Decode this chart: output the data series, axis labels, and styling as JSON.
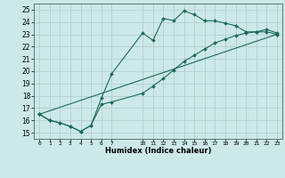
{
  "xlabel": "Humidex (Indice chaleur)",
  "bg_color": "#cde8e8",
  "grid_color": "#b0d0d0",
  "line_color": "#1a6b5a",
  "xlim": [
    -0.5,
    23.5
  ],
  "ylim": [
    14.5,
    25.5
  ],
  "xticks": [
    0,
    1,
    2,
    3,
    4,
    5,
    6,
    7,
    10,
    11,
    12,
    13,
    14,
    15,
    16,
    17,
    18,
    19,
    20,
    21,
    22,
    23
  ],
  "yticks": [
    15,
    16,
    17,
    18,
    19,
    20,
    21,
    22,
    23,
    24,
    25
  ],
  "series1_x": [
    0,
    1,
    2,
    3,
    4,
    5,
    6,
    7,
    10,
    11,
    12,
    13,
    14,
    15,
    16,
    17,
    18,
    19,
    20,
    21,
    22,
    23
  ],
  "series1_y": [
    16.5,
    16.0,
    15.8,
    15.5,
    15.1,
    15.6,
    17.8,
    19.8,
    23.1,
    22.5,
    24.3,
    24.1,
    24.9,
    24.6,
    24.1,
    24.1,
    23.9,
    23.7,
    23.2,
    23.2,
    23.4,
    23.1
  ],
  "series2_x": [
    0,
    1,
    2,
    3,
    4,
    5,
    6,
    7,
    10,
    11,
    12,
    13,
    14,
    15,
    16,
    17,
    18,
    19,
    20,
    21,
    22,
    23
  ],
  "series2_y": [
    16.5,
    16.0,
    15.8,
    15.5,
    15.1,
    15.6,
    17.3,
    17.5,
    18.2,
    18.8,
    19.4,
    20.1,
    20.8,
    21.3,
    21.8,
    22.3,
    22.6,
    22.9,
    23.1,
    23.2,
    23.2,
    23.0
  ],
  "series3_x": [
    0,
    23
  ],
  "series3_y": [
    16.5,
    23.0
  ]
}
